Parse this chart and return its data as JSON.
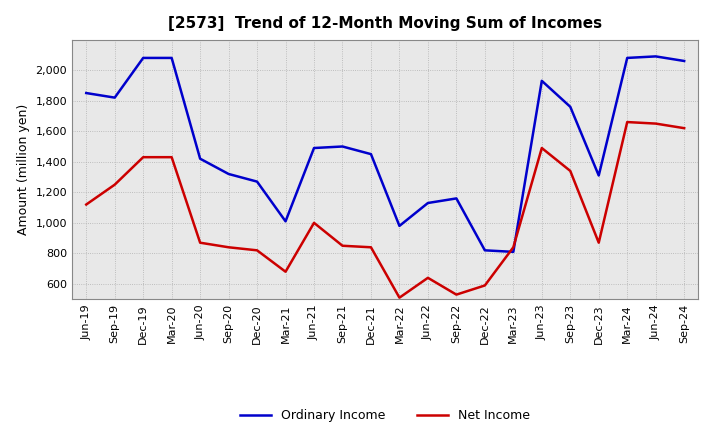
{
  "title": "[2573]  Trend of 12-Month Moving Sum of Incomes",
  "ylabel": "Amount (million yen)",
  "x_labels": [
    "Jun-19",
    "Sep-19",
    "Dec-19",
    "Mar-20",
    "Jun-20",
    "Sep-20",
    "Dec-20",
    "Mar-21",
    "Jun-21",
    "Sep-21",
    "Dec-21",
    "Mar-22",
    "Jun-22",
    "Sep-22",
    "Dec-22",
    "Mar-23",
    "Jun-23",
    "Sep-23",
    "Dec-23",
    "Mar-24",
    "Jun-24",
    "Sep-24"
  ],
  "ordinary_income": [
    1850,
    1820,
    2080,
    2080,
    1420,
    1320,
    1270,
    1010,
    1490,
    1500,
    1450,
    980,
    1130,
    1160,
    820,
    810,
    1930,
    1760,
    1310,
    2080,
    2090,
    2060
  ],
  "net_income": [
    1120,
    1250,
    1430,
    1430,
    870,
    840,
    820,
    680,
    1000,
    850,
    840,
    510,
    640,
    530,
    590,
    840,
    1490,
    1340,
    870,
    1660,
    1650,
    1620
  ],
  "ordinary_color": "#0000cc",
  "net_color": "#cc0000",
  "ylim_min": 500,
  "ylim_max": 2200,
  "yticks": [
    600,
    800,
    1000,
    1200,
    1400,
    1600,
    1800,
    2000
  ],
  "plot_bg_color": "#e8e8e8",
  "background_color": "#ffffff",
  "grid_color": "#aaaaaa",
  "title_fontsize": 11,
  "tick_fontsize": 8,
  "ylabel_fontsize": 9,
  "legend_fontsize": 9
}
